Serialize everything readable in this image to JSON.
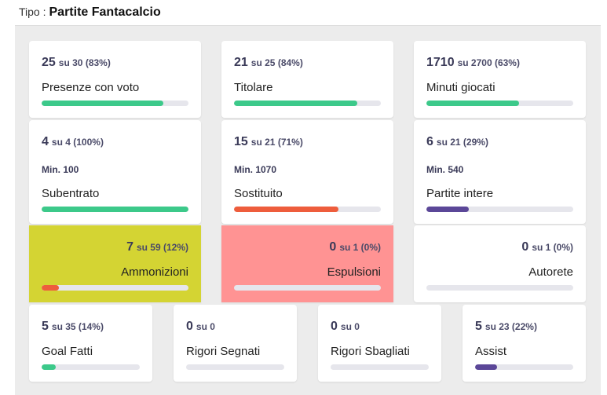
{
  "header": {
    "label": "Tipo :",
    "title": "Partite Fantacalcio"
  },
  "rows": [
    [
      {
        "value": 25,
        "detail": "su 30 (83%)",
        "label": "Presenze con voto",
        "bar": 83,
        "color": "#3cc98a"
      },
      {
        "value": 21,
        "detail": "su 25 (84%)",
        "label": "Titolare",
        "bar": 84,
        "color": "#3cc98a"
      },
      {
        "value": 1710,
        "detail": "su 2700 (63%)",
        "label": "Minuti giocati",
        "bar": 63,
        "color": "#3cc98a"
      }
    ],
    [
      {
        "value": 4,
        "detail": "su 4 (100%)",
        "min": "Min. 100",
        "label": "Subentrato",
        "bar": 100,
        "color": "#3cc98a"
      },
      {
        "value": 15,
        "detail": "su 21 (71%)",
        "min": "Min. 1070",
        "label": "Sostituito",
        "bar": 71,
        "color": "#ee5d3c"
      },
      {
        "value": 6,
        "detail": "su 21 (29%)",
        "min": "Min. 540",
        "label": "Partite intere",
        "bar": 29,
        "color": "#5b4798"
      }
    ],
    [
      {
        "value": 7,
        "detail": "su 59 (12%)",
        "label": "Ammonizioni",
        "bar": 12,
        "color": "#ee5d3c",
        "background": "#d4d433",
        "align": "right"
      },
      {
        "value": 0,
        "detail": "su 1 (0%)",
        "label": "Espulsioni",
        "bar": 0,
        "color": "#ee5d3c",
        "background": "#ff9393",
        "align": "right"
      },
      {
        "value": 0,
        "detail": "su 1 (0%)",
        "label": "Autorete",
        "bar": 0,
        "color": "#ee5d3c",
        "align": "right"
      }
    ],
    [
      {
        "value": 5,
        "detail": "su 35 (14%)",
        "label": "Goal Fatti",
        "bar": 14,
        "color": "#3cc98a"
      },
      {
        "value": 0,
        "detail": "su 0",
        "label": "Rigori Segnati",
        "bar": 0,
        "color": "#3cc98a"
      },
      {
        "value": 0,
        "detail": "su 0",
        "label": "Rigori Sbagliati",
        "bar": 0,
        "color": "#3cc98a"
      },
      {
        "value": 5,
        "detail": "su 23 (22%)",
        "label": "Assist",
        "bar": 22,
        "color": "#5b4798"
      }
    ]
  ]
}
